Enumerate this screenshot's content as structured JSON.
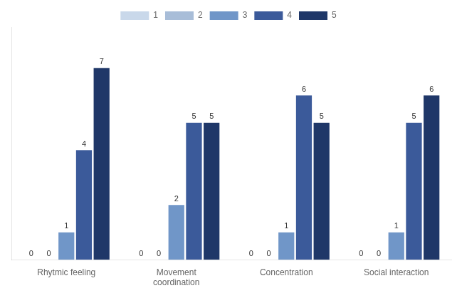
{
  "chart_data": {
    "type": "bar",
    "categories": [
      "Rhytmic feeling",
      "Movement\ncoordination",
      "Concentration",
      "Social interaction"
    ],
    "series": [
      {
        "name": "1",
        "color": "#c9d8ea",
        "values": [
          0,
          0,
          0,
          0
        ]
      },
      {
        "name": "2",
        "color": "#a8bdd8",
        "values": [
          0,
          0,
          0,
          0
        ]
      },
      {
        "name": "3",
        "color": "#7096c8",
        "values": [
          1,
          2,
          1,
          1
        ]
      },
      {
        "name": "4",
        "color": "#3b5a9a",
        "values": [
          4,
          5,
          6,
          5
        ]
      },
      {
        "name": "5",
        "color": "#1f3768",
        "values": [
          7,
          5,
          5,
          6
        ]
      }
    ],
    "ylim": [
      0,
      8.5
    ],
    "grid": false,
    "legend": "top",
    "data_labels": true,
    "tick_labels": "x"
  }
}
